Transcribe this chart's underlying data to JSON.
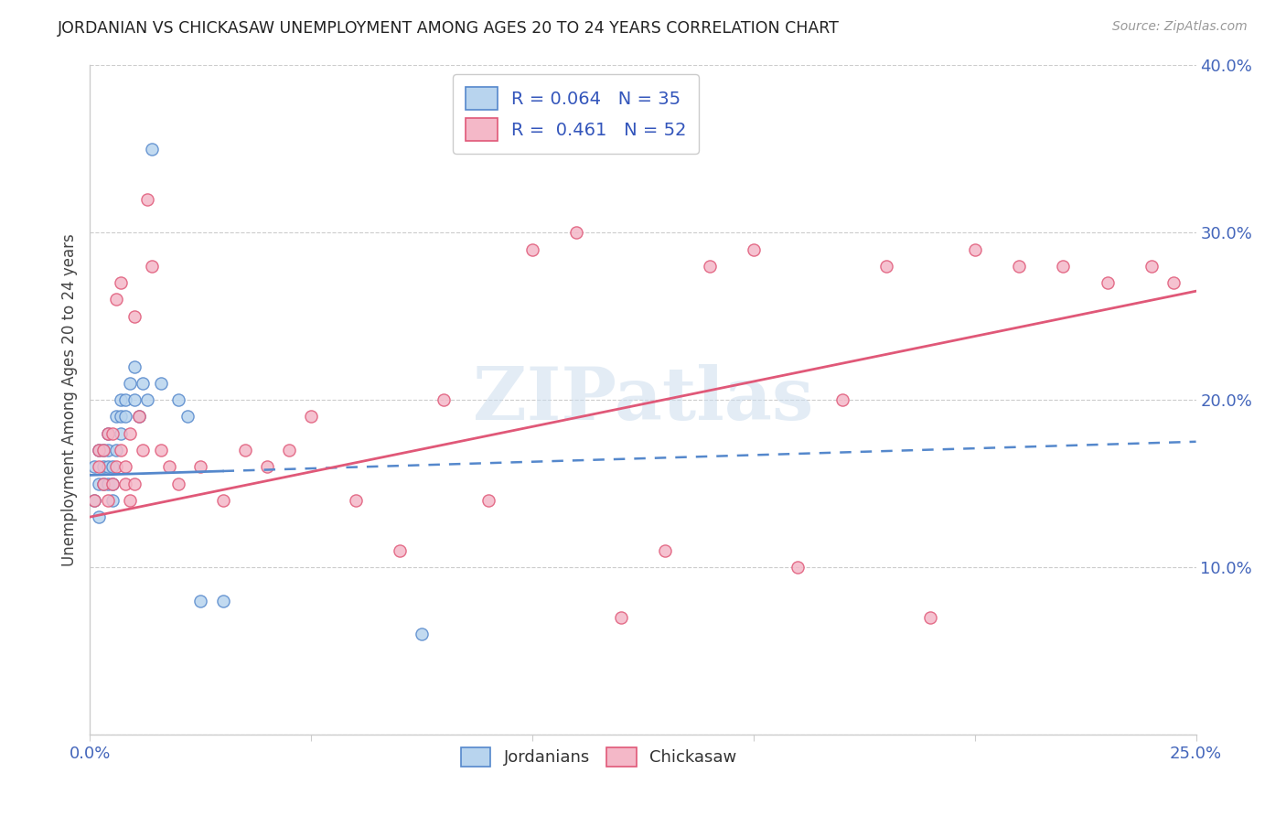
{
  "title": "JORDANIAN VS CHICKASAW UNEMPLOYMENT AMONG AGES 20 TO 24 YEARS CORRELATION CHART",
  "source": "Source: ZipAtlas.com",
  "ylabel": "Unemployment Among Ages 20 to 24 years",
  "xlim": [
    0.0,
    0.25
  ],
  "ylim": [
    0.0,
    0.4
  ],
  "legend1_R": "0.064",
  "legend1_N": "35",
  "legend2_R": "0.461",
  "legend2_N": "52",
  "jordanian_color": "#b8d4ee",
  "chickasaw_color": "#f4b8c8",
  "jordanian_line_color": "#5588cc",
  "chickasaw_line_color": "#e05878",
  "background_color": "#ffffff",
  "jordanian_x": [
    0.001,
    0.001,
    0.002,
    0.002,
    0.002,
    0.003,
    0.003,
    0.003,
    0.004,
    0.004,
    0.004,
    0.004,
    0.005,
    0.005,
    0.005,
    0.006,
    0.006,
    0.007,
    0.007,
    0.007,
    0.008,
    0.008,
    0.009,
    0.01,
    0.01,
    0.011,
    0.012,
    0.013,
    0.014,
    0.016,
    0.02,
    0.022,
    0.025,
    0.03,
    0.075
  ],
  "jordanian_y": [
    0.14,
    0.16,
    0.13,
    0.15,
    0.17,
    0.15,
    0.16,
    0.17,
    0.15,
    0.16,
    0.17,
    0.18,
    0.14,
    0.15,
    0.16,
    0.17,
    0.19,
    0.18,
    0.19,
    0.2,
    0.19,
    0.2,
    0.21,
    0.2,
    0.22,
    0.19,
    0.21,
    0.2,
    0.35,
    0.21,
    0.2,
    0.19,
    0.08,
    0.08,
    0.06
  ],
  "chickasaw_x": [
    0.001,
    0.002,
    0.002,
    0.003,
    0.003,
    0.004,
    0.004,
    0.005,
    0.005,
    0.006,
    0.006,
    0.007,
    0.007,
    0.008,
    0.008,
    0.009,
    0.009,
    0.01,
    0.01,
    0.011,
    0.012,
    0.013,
    0.014,
    0.016,
    0.018,
    0.02,
    0.025,
    0.03,
    0.035,
    0.04,
    0.045,
    0.05,
    0.06,
    0.07,
    0.08,
    0.09,
    0.1,
    0.11,
    0.12,
    0.13,
    0.14,
    0.15,
    0.16,
    0.17,
    0.18,
    0.19,
    0.2,
    0.21,
    0.22,
    0.23,
    0.24,
    0.245
  ],
  "chickasaw_y": [
    0.14,
    0.16,
    0.17,
    0.15,
    0.17,
    0.14,
    0.18,
    0.15,
    0.18,
    0.16,
    0.26,
    0.17,
    0.27,
    0.16,
    0.15,
    0.18,
    0.14,
    0.15,
    0.25,
    0.19,
    0.17,
    0.32,
    0.28,
    0.17,
    0.16,
    0.15,
    0.16,
    0.14,
    0.17,
    0.16,
    0.17,
    0.19,
    0.14,
    0.11,
    0.2,
    0.14,
    0.29,
    0.3,
    0.07,
    0.11,
    0.28,
    0.29,
    0.1,
    0.2,
    0.28,
    0.07,
    0.29,
    0.28,
    0.28,
    0.27,
    0.28,
    0.27
  ],
  "jordanian_trendline_x0": 0.0,
  "jordanian_trendline_x1": 0.25,
  "jordanian_trendline_y0": 0.155,
  "jordanian_trendline_y1": 0.175,
  "chickasaw_trendline_x0": 0.0,
  "chickasaw_trendline_x1": 0.25,
  "chickasaw_trendline_y0": 0.13,
  "chickasaw_trendline_y1": 0.265
}
